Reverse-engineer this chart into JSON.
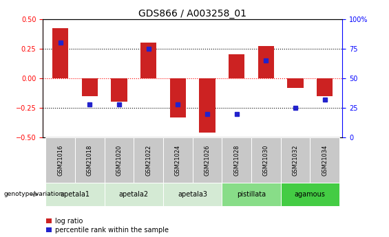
{
  "title": "GDS866 / A003258_01",
  "samples": [
    "GSM21016",
    "GSM21018",
    "GSM21020",
    "GSM21022",
    "GSM21024",
    "GSM21026",
    "GSM21028",
    "GSM21030",
    "GSM21032",
    "GSM21034"
  ],
  "log_ratio": [
    0.42,
    -0.15,
    -0.2,
    0.3,
    -0.33,
    -0.46,
    0.2,
    0.27,
    -0.08,
    -0.15
  ],
  "percentile": [
    0.3,
    -0.22,
    -0.22,
    0.25,
    -0.22,
    -0.3,
    -0.3,
    0.15,
    -0.25,
    -0.18
  ],
  "ylim": [
    -0.5,
    0.5
  ],
  "y2lim": [
    0,
    100
  ],
  "yticks": [
    -0.5,
    -0.25,
    0,
    0.25,
    0.5
  ],
  "y2ticks": [
    0,
    25,
    50,
    75,
    100
  ],
  "dotted_lines_black": [
    -0.25,
    0.25
  ],
  "dotted_line_red": 0.0,
  "bar_color": "#cc2222",
  "dot_color": "#2222cc",
  "bar_width": 0.55,
  "groups": [
    {
      "label": "apetala1",
      "indices": [
        0,
        1
      ],
      "color": "#d4ead4"
    },
    {
      "label": "apetala2",
      "indices": [
        2,
        3
      ],
      "color": "#d4ead4"
    },
    {
      "label": "apetala3",
      "indices": [
        4,
        5
      ],
      "color": "#d4ead4"
    },
    {
      "label": "pistillata",
      "indices": [
        6,
        7
      ],
      "color": "#88dd88"
    },
    {
      "label": "agamous",
      "indices": [
        8,
        9
      ],
      "color": "#44cc44"
    }
  ],
  "legend_labels": [
    "log ratio",
    "percentile rank within the sample"
  ],
  "legend_colors": [
    "#cc2222",
    "#2222cc"
  ],
  "genotype_label": "genotype/variation",
  "title_fontsize": 10,
  "tick_fontsize": 7,
  "sample_fontsize": 6,
  "group_fontsize": 7,
  "legend_fontsize": 7
}
